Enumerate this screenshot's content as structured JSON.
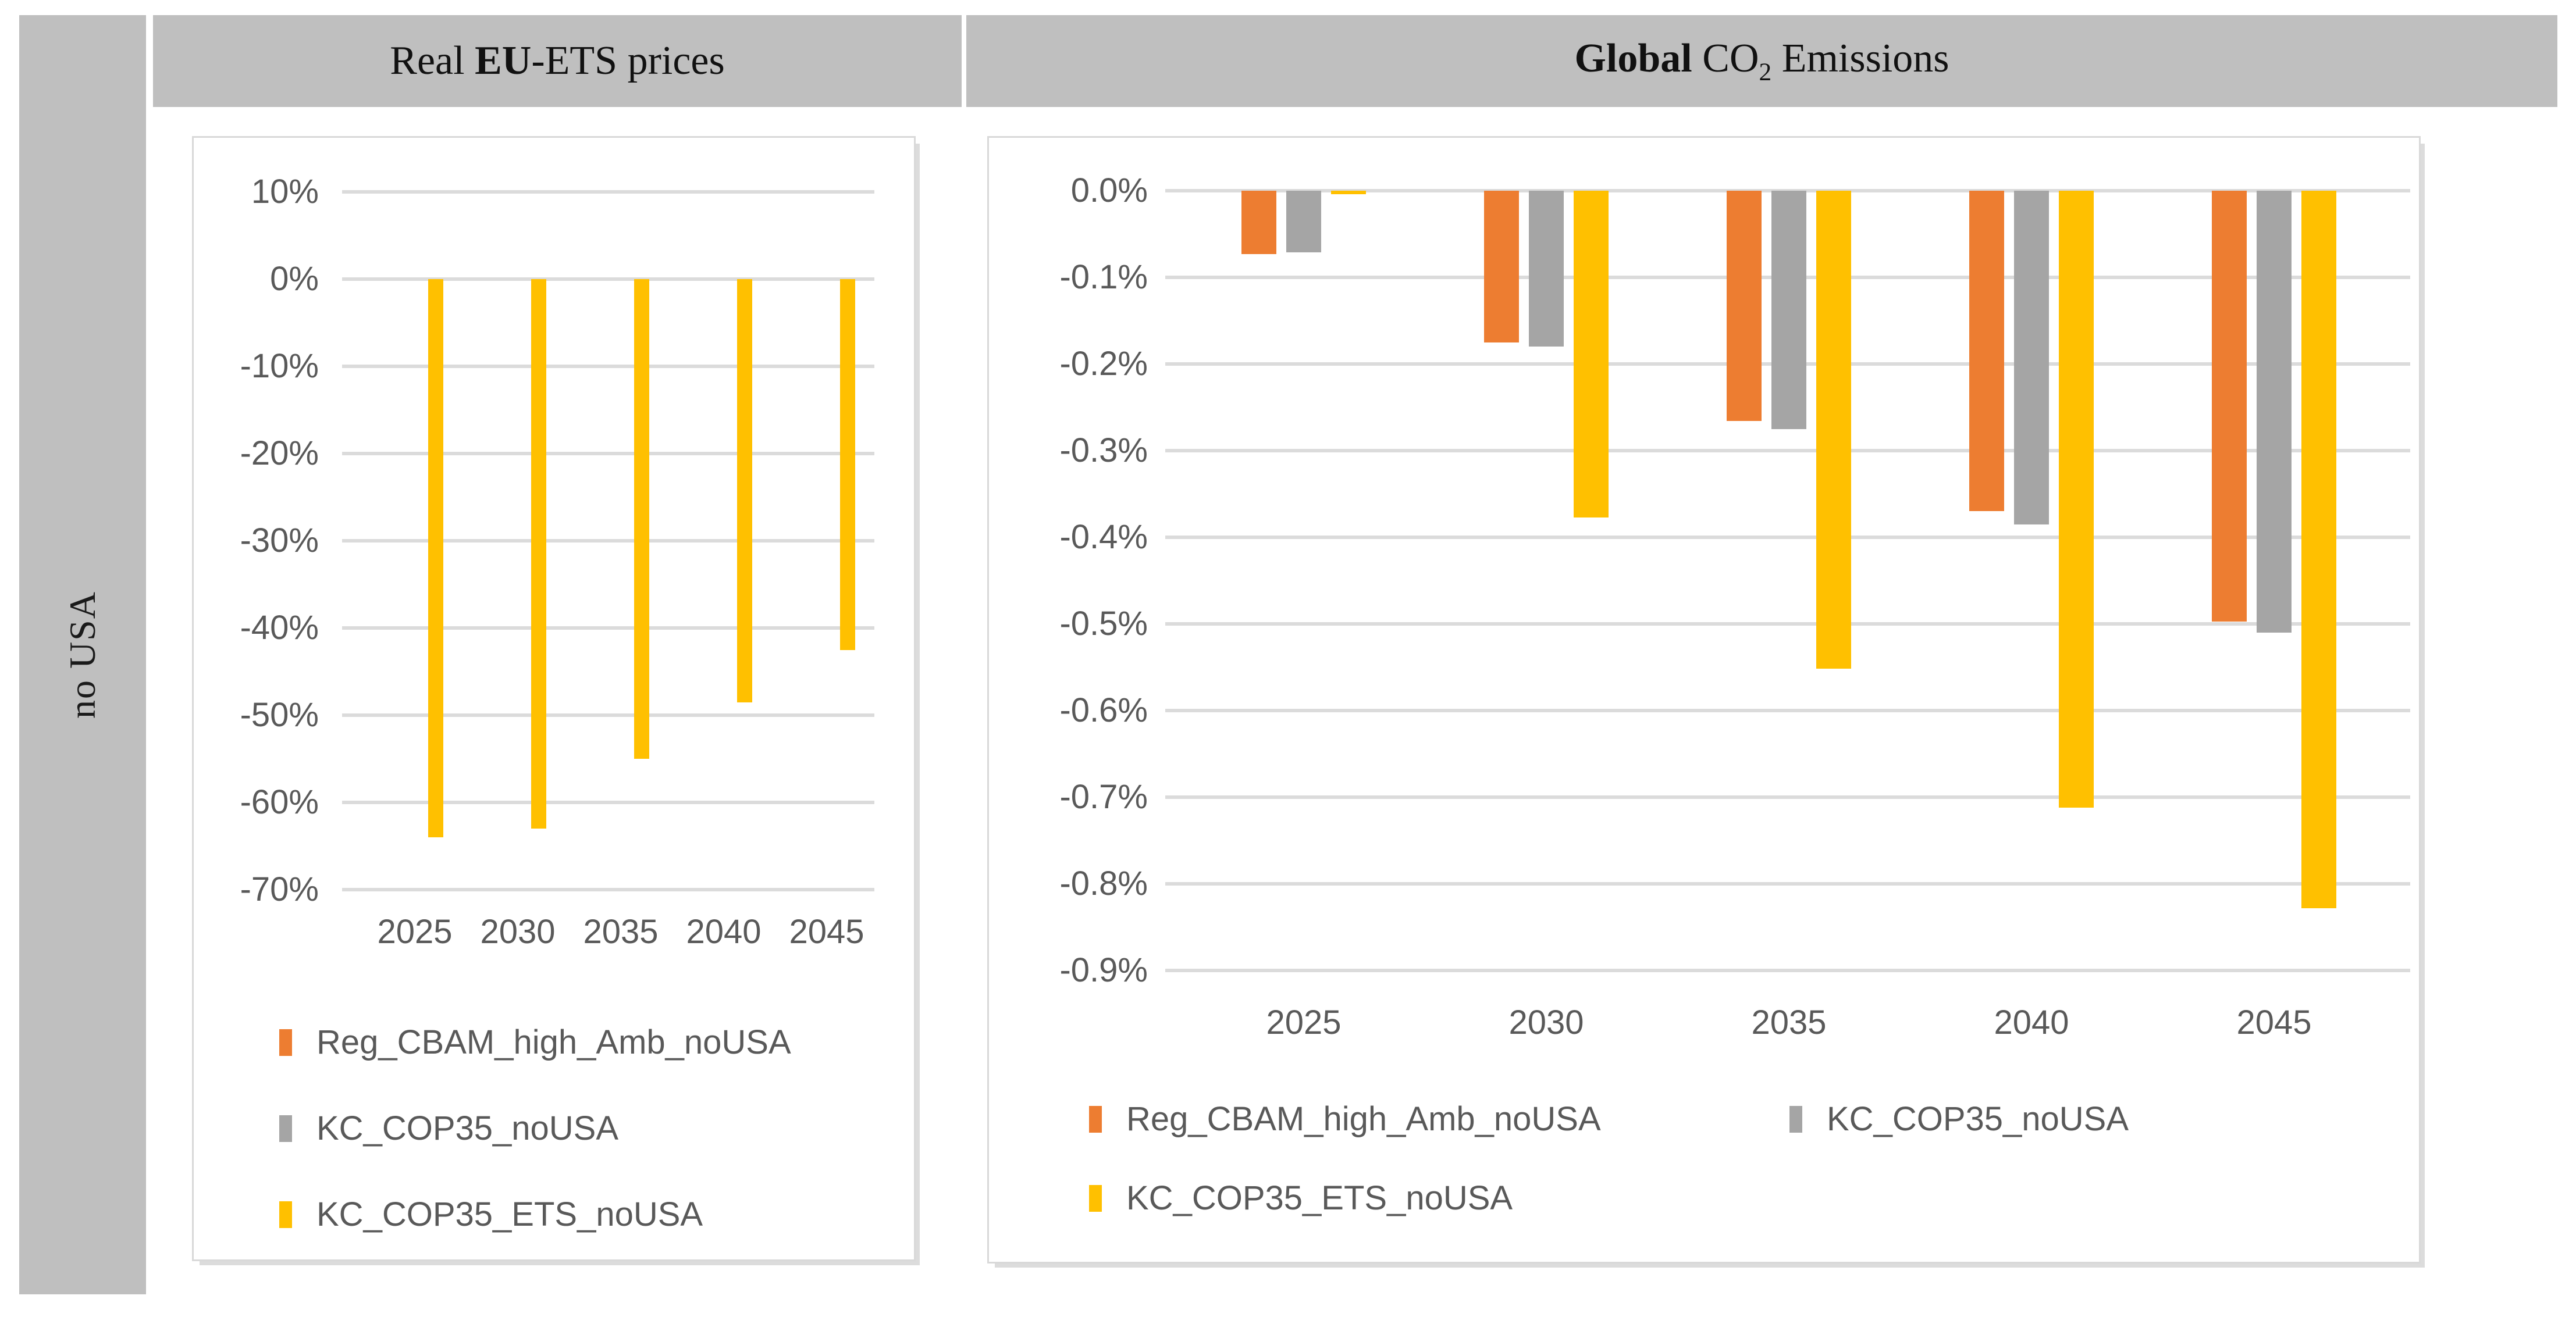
{
  "figure": {
    "row_label": "no USA"
  },
  "panels": [
    {
      "id": "ets",
      "title": "Real EU-ETS prices",
      "title_parts": [
        {
          "text": "Real "
        },
        {
          "text": "EU",
          "bold": true
        },
        {
          "text": "-ETS prices"
        }
      ]
    },
    {
      "id": "co2",
      "title": "Global CO2 Emissions",
      "title_parts": [
        {
          "text": "Global",
          "bold": true
        },
        {
          "text": " CO"
        },
        {
          "text": "2",
          "sub": true
        },
        {
          "text": " Emissions"
        }
      ]
    }
  ],
  "chart_data": [
    {
      "id": "ets",
      "type": "bar",
      "title": "Real EU-ETS prices",
      "categories": [
        "2025",
        "2030",
        "2035",
        "2040",
        "2045"
      ],
      "series": [
        {
          "name": "Reg_CBAM_high_Amb_noUSA",
          "color": "#ED7D31",
          "values": [
            0,
            0,
            0,
            0,
            0
          ]
        },
        {
          "name": "KC_COP35_noUSA",
          "color": "#A5A5A5",
          "values": [
            0,
            0,
            0,
            0,
            0
          ]
        },
        {
          "name": "KC_COP35_ETS_noUSA",
          "color": "#FFC000",
          "values": [
            -64,
            -63,
            -55,
            -48.5,
            -42.5
          ]
        }
      ],
      "unit": "%",
      "ylim": [
        -70,
        10
      ],
      "ytick_step": 10,
      "grid": true,
      "legend_position": "bottom",
      "yticks": [
        {
          "label": "10%",
          "value": 10
        },
        {
          "label": "0%",
          "value": 0
        },
        {
          "label": "-10%",
          "value": -10
        },
        {
          "label": "-20%",
          "value": -20
        },
        {
          "label": "-30%",
          "value": -30
        },
        {
          "label": "-40%",
          "value": -40
        },
        {
          "label": "-50%",
          "value": -50
        },
        {
          "label": "-60%",
          "value": -60
        },
        {
          "label": "-70%",
          "value": -70
        }
      ]
    },
    {
      "id": "co2",
      "type": "bar",
      "title": "Global CO2 Emissions",
      "categories": [
        "2025",
        "2030",
        "2035",
        "2040",
        "2045"
      ],
      "series": [
        {
          "name": "Reg_CBAM_high_Amb_noUSA",
          "color": "#ED7D31",
          "values": [
            -0.073,
            -0.175,
            -0.266,
            -0.37,
            -0.497
          ]
        },
        {
          "name": "KC_COP35_noUSA",
          "color": "#A5A5A5",
          "values": [
            -0.071,
            -0.18,
            -0.275,
            -0.385,
            -0.51
          ]
        },
        {
          "name": "KC_COP35_ETS_noUSA",
          "color": "#FFC000",
          "values": [
            -0.004,
            -0.377,
            -0.552,
            -0.712,
            -0.828
          ]
        }
      ],
      "unit": "%",
      "ylim": [
        -0.9,
        0
      ],
      "ytick_step": 0.1,
      "grid": true,
      "legend_position": "bottom",
      "yticks": [
        {
          "label": "0.0%",
          "value": 0
        },
        {
          "label": "-0.1%",
          "value": -0.1
        },
        {
          "label": "-0.2%",
          "value": -0.2
        },
        {
          "label": "-0.3%",
          "value": -0.3
        },
        {
          "label": "-0.4%",
          "value": -0.4
        },
        {
          "label": "-0.5%",
          "value": -0.5
        },
        {
          "label": "-0.6%",
          "value": -0.6
        },
        {
          "label": "-0.7%",
          "value": -0.7
        },
        {
          "label": "-0.8%",
          "value": -0.8
        },
        {
          "label": "-0.9%",
          "value": -0.9
        }
      ]
    }
  ]
}
